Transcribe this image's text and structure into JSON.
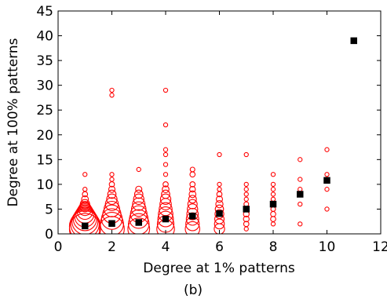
{
  "chart_data": {
    "type": "scatter",
    "xlabel": "Degree at 1% patterns",
    "ylabel": "Degree at 100% patterns",
    "caption": "(b)",
    "xlim": [
      0,
      12
    ],
    "ylim": [
      0,
      45
    ],
    "x_ticks": [
      0,
      2,
      4,
      6,
      8,
      10,
      12
    ],
    "y_ticks": [
      0,
      5,
      10,
      15,
      20,
      25,
      30,
      35,
      40,
      45
    ],
    "grid": false,
    "legend": "none",
    "colors": {
      "points": "#ff0000",
      "means": "#000000"
    },
    "series": [
      {
        "marker": "open-circle-sized",
        "points": [
          {
            "x": 1,
            "y": 1,
            "s": 6
          },
          {
            "x": 1,
            "y": 1.5,
            "s": 6
          },
          {
            "x": 1,
            "y": 2,
            "s": 5.5
          },
          {
            "x": 1,
            "y": 2.5,
            "s": 5
          },
          {
            "x": 1,
            "y": 3,
            "s": 4.5
          },
          {
            "x": 1,
            "y": 3.5,
            "s": 4
          },
          {
            "x": 1,
            "y": 4,
            "s": 3.5
          },
          {
            "x": 1,
            "y": 4.5,
            "s": 3
          },
          {
            "x": 1,
            "y": 5,
            "s": 2.5
          },
          {
            "x": 1,
            "y": 5.5,
            "s": 2
          },
          {
            "x": 1,
            "y": 6,
            "s": 1.8
          },
          {
            "x": 1,
            "y": 7,
            "s": 1.3
          },
          {
            "x": 1,
            "y": 8,
            "s": 1
          },
          {
            "x": 1,
            "y": 9,
            "s": 0.8
          },
          {
            "x": 1,
            "y": 12,
            "s": 0.6
          },
          {
            "x": 2,
            "y": 1,
            "s": 4.8
          },
          {
            "x": 2,
            "y": 2,
            "s": 4.5
          },
          {
            "x": 2,
            "y": 3,
            "s": 4
          },
          {
            "x": 2,
            "y": 4,
            "s": 3.5
          },
          {
            "x": 2,
            "y": 5,
            "s": 3
          },
          {
            "x": 2,
            "y": 6,
            "s": 2.5
          },
          {
            "x": 2,
            "y": 7,
            "s": 2
          },
          {
            "x": 2,
            "y": 8,
            "s": 1.6
          },
          {
            "x": 2,
            "y": 9,
            "s": 1.2
          },
          {
            "x": 2,
            "y": 10,
            "s": 1
          },
          {
            "x": 2,
            "y": 11,
            "s": 0.7
          },
          {
            "x": 2,
            "y": 12,
            "s": 0.6
          },
          {
            "x": 2,
            "y": 28,
            "s": 0.6
          },
          {
            "x": 2,
            "y": 29,
            "s": 0.6
          },
          {
            "x": 3,
            "y": 1,
            "s": 4.2
          },
          {
            "x": 3,
            "y": 2,
            "s": 4
          },
          {
            "x": 3,
            "y": 3,
            "s": 3.6
          },
          {
            "x": 3,
            "y": 4,
            "s": 3.2
          },
          {
            "x": 3,
            "y": 5,
            "s": 2.8
          },
          {
            "x": 3,
            "y": 6,
            "s": 2.4
          },
          {
            "x": 3,
            "y": 7,
            "s": 2
          },
          {
            "x": 3,
            "y": 8,
            "s": 1.6
          },
          {
            "x": 3,
            "y": 9,
            "s": 1.2
          },
          {
            "x": 3,
            "y": 13,
            "s": 0.6
          },
          {
            "x": 4,
            "y": 1,
            "s": 3.4
          },
          {
            "x": 4,
            "y": 2,
            "s": 3.2
          },
          {
            "x": 4,
            "y": 3,
            "s": 3
          },
          {
            "x": 4,
            "y": 4,
            "s": 2.8
          },
          {
            "x": 4,
            "y": 5,
            "s": 2.5
          },
          {
            "x": 4,
            "y": 6,
            "s": 2.2
          },
          {
            "x": 4,
            "y": 7,
            "s": 2
          },
          {
            "x": 4,
            "y": 8,
            "s": 1.6
          },
          {
            "x": 4,
            "y": 9,
            "s": 1.3
          },
          {
            "x": 4,
            "y": 10,
            "s": 1
          },
          {
            "x": 4,
            "y": 12,
            "s": 0.6
          },
          {
            "x": 4,
            "y": 14,
            "s": 0.6
          },
          {
            "x": 4,
            "y": 16,
            "s": 0.6
          },
          {
            "x": 4,
            "y": 17,
            "s": 0.6
          },
          {
            "x": 4,
            "y": 22,
            "s": 0.6
          },
          {
            "x": 4,
            "y": 29,
            "s": 0.6
          },
          {
            "x": 5,
            "y": 1,
            "s": 2.8
          },
          {
            "x": 5,
            "y": 2,
            "s": 2.6
          },
          {
            "x": 5,
            "y": 3,
            "s": 2.4
          },
          {
            "x": 5,
            "y": 4,
            "s": 2.2
          },
          {
            "x": 5,
            "y": 5,
            "s": 2
          },
          {
            "x": 5,
            "y": 6,
            "s": 1.8
          },
          {
            "x": 5,
            "y": 7,
            "s": 1.5
          },
          {
            "x": 5,
            "y": 8,
            "s": 1.3
          },
          {
            "x": 5,
            "y": 9,
            "s": 1.1
          },
          {
            "x": 5,
            "y": 10,
            "s": 1
          },
          {
            "x": 5,
            "y": 12,
            "s": 1
          },
          {
            "x": 5,
            "y": 13,
            "s": 0.9
          },
          {
            "x": 6,
            "y": 1,
            "s": 2
          },
          {
            "x": 6,
            "y": 2,
            "s": 1.9
          },
          {
            "x": 6,
            "y": 3,
            "s": 1.8
          },
          {
            "x": 6,
            "y": 4,
            "s": 1.7
          },
          {
            "x": 6,
            "y": 5,
            "s": 1.6
          },
          {
            "x": 6,
            "y": 6,
            "s": 1.4
          },
          {
            "x": 6,
            "y": 7,
            "s": 1.2
          },
          {
            "x": 6,
            "y": 8,
            "s": 1
          },
          {
            "x": 6,
            "y": 9,
            "s": 0.8
          },
          {
            "x": 6,
            "y": 10,
            "s": 0.6
          },
          {
            "x": 6,
            "y": 16,
            "s": 0.6
          },
          {
            "x": 7,
            "y": 1,
            "s": 0.6
          },
          {
            "x": 7,
            "y": 2,
            "s": 1
          },
          {
            "x": 7,
            "y": 3,
            "s": 1.1
          },
          {
            "x": 7,
            "y": 4,
            "s": 1.1
          },
          {
            "x": 7,
            "y": 5,
            "s": 1
          },
          {
            "x": 7,
            "y": 6,
            "s": 0.9
          },
          {
            "x": 7,
            "y": 7,
            "s": 0.7
          },
          {
            "x": 7,
            "y": 8,
            "s": 0.7
          },
          {
            "x": 7,
            "y": 9,
            "s": 0.6
          },
          {
            "x": 7,
            "y": 10,
            "s": 0.6
          },
          {
            "x": 7,
            "y": 16,
            "s": 0.6
          },
          {
            "x": 8,
            "y": 2,
            "s": 0.6
          },
          {
            "x": 8,
            "y": 3,
            "s": 1
          },
          {
            "x": 8,
            "y": 4,
            "s": 1
          },
          {
            "x": 8,
            "y": 5,
            "s": 0.9
          },
          {
            "x": 8,
            "y": 6,
            "s": 1
          },
          {
            "x": 8,
            "y": 7,
            "s": 0.8
          },
          {
            "x": 8,
            "y": 8,
            "s": 0.7
          },
          {
            "x": 8,
            "y": 9,
            "s": 0.6
          },
          {
            "x": 8,
            "y": 10,
            "s": 0.6
          },
          {
            "x": 8,
            "y": 12,
            "s": 0.6
          },
          {
            "x": 9,
            "y": 2,
            "s": 0.6
          },
          {
            "x": 9,
            "y": 6,
            "s": 0.6
          },
          {
            "x": 9,
            "y": 8,
            "s": 0.7
          },
          {
            "x": 9,
            "y": 9,
            "s": 0.6
          },
          {
            "x": 9,
            "y": 11,
            "s": 0.6
          },
          {
            "x": 9,
            "y": 15,
            "s": 0.6
          },
          {
            "x": 10,
            "y": 5,
            "s": 0.6
          },
          {
            "x": 10,
            "y": 9,
            "s": 0.6
          },
          {
            "x": 10,
            "y": 11,
            "s": 0.6
          },
          {
            "x": 10,
            "y": 12,
            "s": 0.6
          },
          {
            "x": 10,
            "y": 17,
            "s": 0.6
          }
        ]
      },
      {
        "marker": "filled-square",
        "points": [
          {
            "x": 1,
            "y": 1.6
          },
          {
            "x": 2,
            "y": 2.1
          },
          {
            "x": 3,
            "y": 2.3
          },
          {
            "x": 4,
            "y": 3.0
          },
          {
            "x": 5,
            "y": 3.6
          },
          {
            "x": 6,
            "y": 4.1
          },
          {
            "x": 7,
            "y": 5.0
          },
          {
            "x": 8,
            "y": 6.0
          },
          {
            "x": 9,
            "y": 8.0
          },
          {
            "x": 10,
            "y": 10.8
          },
          {
            "x": 11,
            "y": 39
          }
        ]
      }
    ]
  }
}
